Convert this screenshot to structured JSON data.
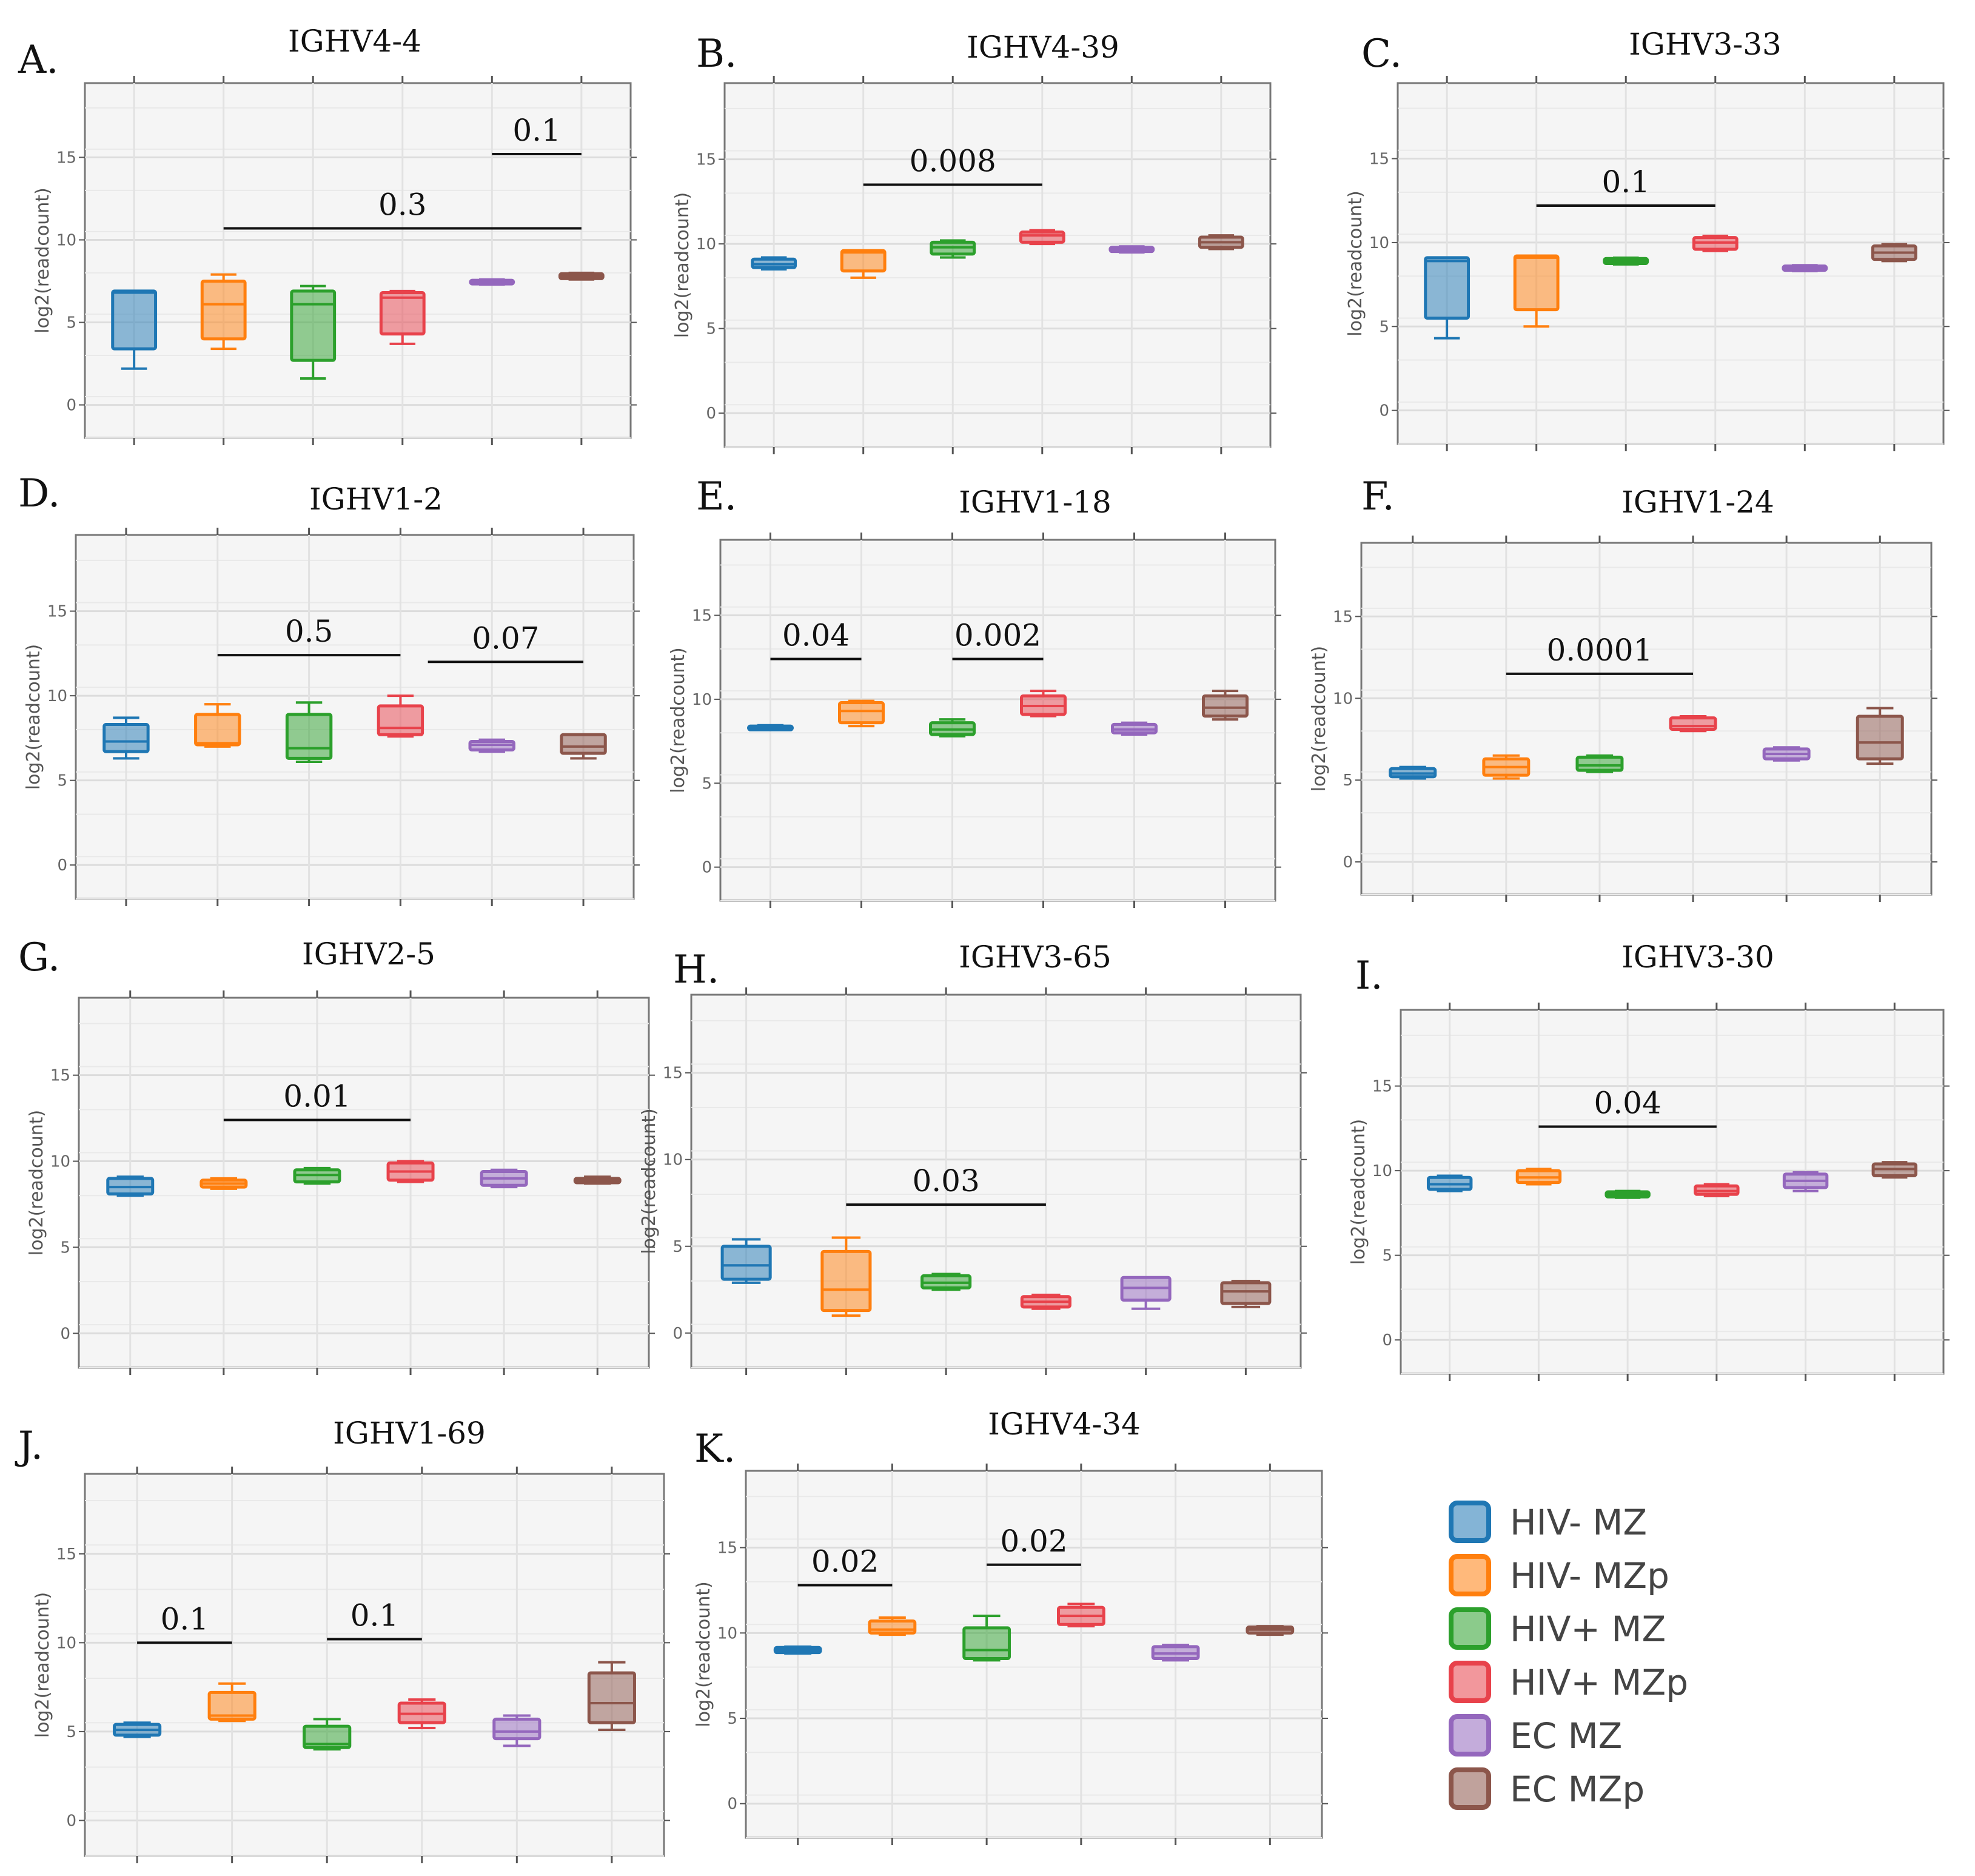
{
  "groups": [
    {
      "name": "HIV- MZ",
      "color": "#1f77b4"
    },
    {
      "name": "HIV- MZp",
      "color": "#ff7f0e"
    },
    {
      "name": "HIV+ MZ",
      "color": "#2ca02c"
    },
    {
      "name": "HIV+ MZp",
      "color": "#e8424b"
    },
    {
      "name": "EC MZ",
      "color": "#9467bd"
    },
    {
      "name": "EC MZp",
      "color": "#8c564b"
    }
  ],
  "ylabel": "log2(readcount)",
  "yticks": [
    0,
    5,
    10,
    15
  ],
  "chart_data": [
    {
      "type": "box",
      "letter": "A.",
      "title": "IGHV4-4",
      "ylim": [
        -2,
        19.5
      ],
      "boxes": [
        {
          "min": 2.2,
          "q1": 3.4,
          "median": 6.8,
          "q3": 6.9,
          "max": 6.9
        },
        {
          "min": 3.4,
          "q1": 4.0,
          "median": 6.1,
          "q3": 7.5,
          "max": 7.9
        },
        {
          "min": 1.6,
          "q1": 2.7,
          "median": 6.1,
          "q3": 6.9,
          "max": 7.2
        },
        {
          "min": 3.7,
          "q1": 4.3,
          "median": 6.5,
          "q3": 6.8,
          "max": 6.9
        },
        {
          "min": 7.3,
          "q1": 7.35,
          "median": 7.45,
          "q3": 7.55,
          "max": 7.6
        },
        {
          "min": 7.6,
          "q1": 7.65,
          "median": 7.8,
          "q3": 7.95,
          "max": 8.0
        }
      ],
      "brackets": [
        {
          "from": 5,
          "to": 6,
          "label": "0.1",
          "y": 15.2
        },
        {
          "from": 2,
          "to": 6,
          "label": "0.3",
          "y": 10.7
        }
      ]
    },
    {
      "type": "box",
      "letter": "B.",
      "title": "IGHV4-39",
      "ylim": [
        -2,
        19.5
      ],
      "boxes": [
        {
          "min": 8.5,
          "q1": 8.6,
          "median": 8.8,
          "q3": 9.1,
          "max": 9.2
        },
        {
          "min": 8.0,
          "q1": 8.4,
          "median": 9.5,
          "q3": 9.6,
          "max": 9.6
        },
        {
          "min": 9.2,
          "q1": 9.4,
          "median": 9.8,
          "q3": 10.1,
          "max": 10.2
        },
        {
          "min": 10.0,
          "q1": 10.1,
          "median": 10.5,
          "q3": 10.7,
          "max": 10.8
        },
        {
          "min": 9.5,
          "q1": 9.55,
          "median": 9.7,
          "q3": 9.8,
          "max": 9.85
        },
        {
          "min": 9.7,
          "q1": 9.8,
          "median": 10.1,
          "q3": 10.4,
          "max": 10.5
        }
      ],
      "brackets": [
        {
          "from": 2,
          "to": 4,
          "label": "0.008",
          "y": 13.5
        }
      ]
    },
    {
      "type": "box",
      "letter": "C.",
      "title": "IGHV3-33",
      "ylim": [
        -2,
        19.5
      ],
      "boxes": [
        {
          "min": 4.3,
          "q1": 5.5,
          "median": 8.9,
          "q3": 9.1,
          "max": 9.1
        },
        {
          "min": 5.0,
          "q1": 6.0,
          "median": 9.1,
          "q3": 9.2,
          "max": 9.2
        },
        {
          "min": 8.7,
          "q1": 8.75,
          "median": 8.9,
          "q3": 9.05,
          "max": 9.1
        },
        {
          "min": 9.5,
          "q1": 9.6,
          "median": 10.0,
          "q3": 10.3,
          "max": 10.4
        },
        {
          "min": 8.3,
          "q1": 8.35,
          "median": 8.5,
          "q3": 8.6,
          "max": 8.65
        },
        {
          "min": 8.9,
          "q1": 9.0,
          "median": 9.4,
          "q3": 9.8,
          "max": 9.9
        }
      ],
      "brackets": [
        {
          "from": 2,
          "to": 4,
          "label": "0.1",
          "y": 12.2
        }
      ]
    },
    {
      "type": "box",
      "letter": "D.",
      "title": "IGHV1-2",
      "ylim": [
        -2,
        19.5
      ],
      "boxes": [
        {
          "min": 6.3,
          "q1": 6.7,
          "median": 7.3,
          "q3": 8.3,
          "max": 8.7
        },
        {
          "min": 7.0,
          "q1": 7.1,
          "median": 7.2,
          "q3": 8.9,
          "max": 9.5
        },
        {
          "min": 6.1,
          "q1": 6.3,
          "median": 6.9,
          "q3": 8.9,
          "max": 9.6
        },
        {
          "min": 7.6,
          "q1": 7.7,
          "median": 8.1,
          "q3": 9.4,
          "max": 10.0
        },
        {
          "min": 6.7,
          "q1": 6.8,
          "median": 7.1,
          "q3": 7.3,
          "max": 7.4
        },
        {
          "min": 6.3,
          "q1": 6.6,
          "median": 7.0,
          "q3": 7.7,
          "max": 7.7
        }
      ],
      "brackets": [
        {
          "from": 2,
          "to": 4,
          "label": "0.5",
          "y": 12.4
        },
        {
          "from": 4.3,
          "to": 6,
          "label": "0.07",
          "y": 12.0
        }
      ]
    },
    {
      "type": "box",
      "letter": "E.",
      "title": "IGHV1-18",
      "ylim": [
        -2,
        19.5
      ],
      "boxes": [
        {
          "min": 8.2,
          "q1": 8.25,
          "median": 8.3,
          "q3": 8.4,
          "max": 8.45
        },
        {
          "min": 8.4,
          "q1": 8.6,
          "median": 9.3,
          "q3": 9.8,
          "max": 9.9
        },
        {
          "min": 7.8,
          "q1": 7.9,
          "median": 8.2,
          "q3": 8.6,
          "max": 8.8
        },
        {
          "min": 9.0,
          "q1": 9.1,
          "median": 9.6,
          "q3": 10.2,
          "max": 10.5
        },
        {
          "min": 7.9,
          "q1": 8.0,
          "median": 8.2,
          "q3": 8.5,
          "max": 8.6
        },
        {
          "min": 8.8,
          "q1": 9.0,
          "median": 9.5,
          "q3": 10.2,
          "max": 10.5
        }
      ],
      "brackets": [
        {
          "from": 1,
          "to": 2,
          "label": "0.04",
          "y": 12.4
        },
        {
          "from": 3,
          "to": 4,
          "label": "0.002",
          "y": 12.4
        }
      ]
    },
    {
      "type": "box",
      "letter": "F.",
      "title": "IGHV1-24",
      "ylim": [
        -2,
        19.5
      ],
      "boxes": [
        {
          "min": 5.1,
          "q1": 5.2,
          "median": 5.4,
          "q3": 5.7,
          "max": 5.8
        },
        {
          "min": 5.1,
          "q1": 5.3,
          "median": 5.8,
          "q3": 6.3,
          "max": 6.5
        },
        {
          "min": 5.5,
          "q1": 5.6,
          "median": 5.9,
          "q3": 6.4,
          "max": 6.5
        },
        {
          "min": 8.0,
          "q1": 8.1,
          "median": 8.3,
          "q3": 8.8,
          "max": 8.9
        },
        {
          "min": 6.2,
          "q1": 6.3,
          "median": 6.6,
          "q3": 6.9,
          "max": 7.0
        },
        {
          "min": 6.0,
          "q1": 6.3,
          "median": 7.3,
          "q3": 8.9,
          "max": 9.4
        }
      ],
      "brackets": [
        {
          "from": 2,
          "to": 4,
          "label": "0.0001",
          "y": 11.5
        }
      ]
    },
    {
      "type": "box",
      "letter": "G.",
      "title": "IGHV2-5",
      "ylim": [
        -2,
        19.5
      ],
      "boxes": [
        {
          "min": 8.0,
          "q1": 8.1,
          "median": 8.5,
          "q3": 9.0,
          "max": 9.1
        },
        {
          "min": 8.4,
          "q1": 8.5,
          "median": 8.7,
          "q3": 8.9,
          "max": 9.0
        },
        {
          "min": 8.7,
          "q1": 8.8,
          "median": 9.2,
          "q3": 9.5,
          "max": 9.6
        },
        {
          "min": 8.8,
          "q1": 8.9,
          "median": 9.4,
          "q3": 9.9,
          "max": 10.0
        },
        {
          "min": 8.5,
          "q1": 8.6,
          "median": 9.0,
          "q3": 9.4,
          "max": 9.5
        },
        {
          "min": 8.7,
          "q1": 8.75,
          "median": 8.9,
          "q3": 9.0,
          "max": 9.1
        }
      ],
      "brackets": [
        {
          "from": 2,
          "to": 4,
          "label": "0.01",
          "y": 12.4
        }
      ]
    },
    {
      "type": "box",
      "letter": "H.",
      "title": "IGHV3-65",
      "ylim": [
        -2,
        19.5
      ],
      "boxes": [
        {
          "min": 2.9,
          "q1": 3.1,
          "median": 3.9,
          "q3": 5.0,
          "max": 5.4
        },
        {
          "min": 1.0,
          "q1": 1.3,
          "median": 2.5,
          "q3": 4.7,
          "max": 5.5
        },
        {
          "min": 2.5,
          "q1": 2.6,
          "median": 2.9,
          "q3": 3.3,
          "max": 3.4
        },
        {
          "min": 1.4,
          "q1": 1.5,
          "median": 1.8,
          "q3": 2.1,
          "max": 2.2
        },
        {
          "min": 1.4,
          "q1": 1.9,
          "median": 2.6,
          "q3": 3.2,
          "max": 3.2
        },
        {
          "min": 1.5,
          "q1": 1.7,
          "median": 2.4,
          "q3": 2.9,
          "max": 3.0
        }
      ],
      "brackets": [
        {
          "from": 2,
          "to": 4,
          "label": "0.03",
          "y": 7.4
        }
      ]
    },
    {
      "type": "box",
      "letter": "I.",
      "title": "IGHV3-30",
      "ylim": [
        -2,
        19.5
      ],
      "boxes": [
        {
          "min": 8.8,
          "q1": 8.9,
          "median": 9.2,
          "q3": 9.6,
          "max": 9.7
        },
        {
          "min": 9.2,
          "q1": 9.3,
          "median": 9.6,
          "q3": 10.0,
          "max": 10.1
        },
        {
          "min": 8.4,
          "q1": 8.45,
          "median": 8.6,
          "q3": 8.75,
          "max": 8.8
        },
        {
          "min": 8.5,
          "q1": 8.6,
          "median": 8.8,
          "q3": 9.1,
          "max": 9.2
        },
        {
          "min": 8.8,
          "q1": 9.0,
          "median": 9.4,
          "q3": 9.8,
          "max": 9.9
        },
        {
          "min": 9.6,
          "q1": 9.7,
          "median": 10.1,
          "q3": 10.4,
          "max": 10.5
        }
      ],
      "brackets": [
        {
          "from": 2,
          "to": 4,
          "label": "0.04",
          "y": 12.6
        }
      ]
    },
    {
      "type": "box",
      "letter": "J.",
      "title": "IGHV1-69",
      "ylim": [
        -2,
        19.5
      ],
      "boxes": [
        {
          "min": 4.7,
          "q1": 4.8,
          "median": 5.1,
          "q3": 5.4,
          "max": 5.5
        },
        {
          "min": 5.6,
          "q1": 5.7,
          "median": 5.9,
          "q3": 7.2,
          "max": 7.7
        },
        {
          "min": 4.0,
          "q1": 4.1,
          "median": 4.3,
          "q3": 5.3,
          "max": 5.7
        },
        {
          "min": 5.2,
          "q1": 5.5,
          "median": 6.0,
          "q3": 6.6,
          "max": 6.8
        },
        {
          "min": 4.2,
          "q1": 4.6,
          "median": 5.0,
          "q3": 5.7,
          "max": 5.9
        },
        {
          "min": 5.1,
          "q1": 5.5,
          "median": 6.6,
          "q3": 8.3,
          "max": 8.9
        }
      ],
      "brackets": [
        {
          "from": 1,
          "to": 2,
          "label": "0.1",
          "y": 10.0
        },
        {
          "from": 3,
          "to": 4,
          "label": "0.1",
          "y": 10.2
        }
      ]
    },
    {
      "type": "box",
      "letter": "K.",
      "title": "IGHV4-34",
      "ylim": [
        -2,
        19.5
      ],
      "boxes": [
        {
          "min": 8.8,
          "q1": 8.85,
          "median": 9.0,
          "q3": 9.15,
          "max": 9.2
        },
        {
          "min": 9.9,
          "q1": 10.0,
          "median": 10.2,
          "q3": 10.7,
          "max": 10.9
        },
        {
          "min": 8.4,
          "q1": 8.5,
          "median": 9.0,
          "q3": 10.3,
          "max": 11.0
        },
        {
          "min": 10.4,
          "q1": 10.5,
          "median": 11.0,
          "q3": 11.5,
          "max": 11.7
        },
        {
          "min": 8.4,
          "q1": 8.5,
          "median": 8.8,
          "q3": 9.2,
          "max": 9.3
        },
        {
          "min": 9.9,
          "q1": 10.0,
          "median": 10.2,
          "q3": 10.35,
          "max": 10.4
        }
      ],
      "brackets": [
        {
          "from": 1,
          "to": 2,
          "label": "0.02",
          "y": 12.8
        },
        {
          "from": 3,
          "to": 4,
          "label": "0.02",
          "y": 14.0
        }
      ]
    }
  ]
}
